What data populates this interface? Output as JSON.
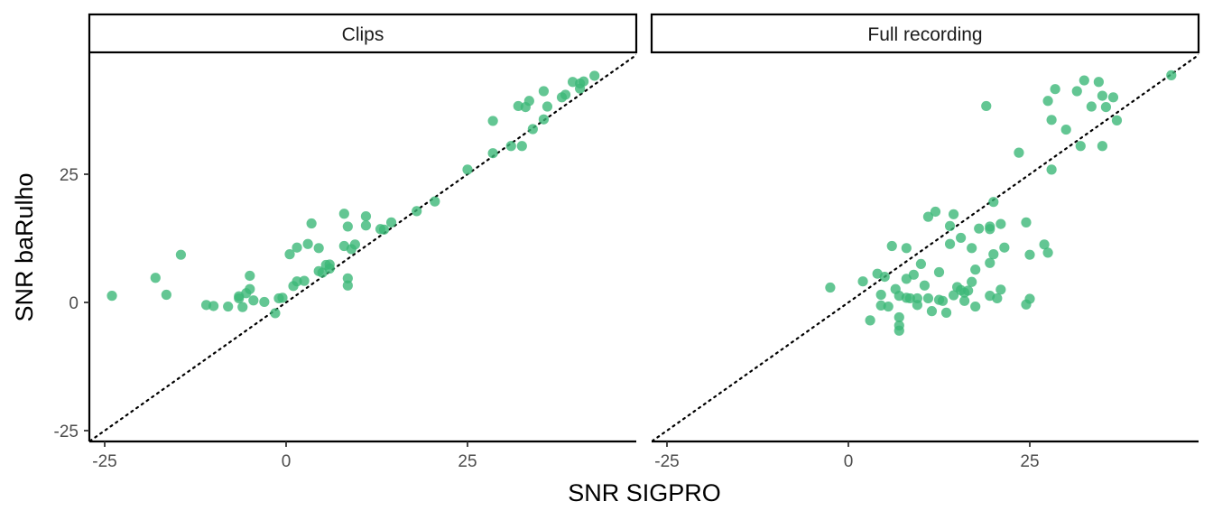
{
  "chart_data": {
    "type": "scatter",
    "xlabel": "SNR SIGPRO",
    "ylabel": "SNR baRulho",
    "xlim": [
      -27,
      46
    ],
    "ylim": [
      -27,
      46
    ],
    "x_ticks": [
      -25,
      0,
      25
    ],
    "y_ticks": [
      -25,
      0,
      25
    ],
    "reference_line": "y = x (dotted)",
    "grid": false,
    "point_color": "#3CB878",
    "panels": [
      {
        "strip_label": "Clips",
        "points": [
          [
            -24,
            1.3
          ],
          [
            -18,
            4.8
          ],
          [
            -16.5,
            1.5
          ],
          [
            -14.5,
            9.3
          ],
          [
            -11,
            -0.5
          ],
          [
            -10,
            -0.7
          ],
          [
            -8,
            -0.8
          ],
          [
            -6.5,
            1.2
          ],
          [
            -6.5,
            0.8
          ],
          [
            -6,
            -0.9
          ],
          [
            -5.5,
            1.8
          ],
          [
            -5,
            2.6
          ],
          [
            -5,
            5.2
          ],
          [
            -4.5,
            0.4
          ],
          [
            -3,
            0.1
          ],
          [
            -1.5,
            -2.1
          ],
          [
            -1,
            0.8
          ],
          [
            -0.5,
            0.9
          ],
          [
            0.5,
            9.4
          ],
          [
            1,
            3.2
          ],
          [
            1.5,
            10.7
          ],
          [
            1.5,
            4.1
          ],
          [
            2.5,
            4.2
          ],
          [
            3,
            11.4
          ],
          [
            3.5,
            15.4
          ],
          [
            4.5,
            10.6
          ],
          [
            4.5,
            6.1
          ],
          [
            5,
            5.8
          ],
          [
            5.5,
            7.3
          ],
          [
            6,
            7.4
          ],
          [
            6,
            6.6
          ],
          [
            8,
            11
          ],
          [
            8,
            17.3
          ],
          [
            8.5,
            14.8
          ],
          [
            8.5,
            3.3
          ],
          [
            8.5,
            4.7
          ],
          [
            9,
            10.4
          ],
          [
            9.5,
            11.3
          ],
          [
            11,
            15
          ],
          [
            11,
            16.8
          ],
          [
            13,
            14.3
          ],
          [
            13.5,
            14.2
          ],
          [
            14.5,
            15.6
          ],
          [
            18,
            17.8
          ],
          [
            20.5,
            19.7
          ],
          [
            25,
            25.9
          ],
          [
            28.5,
            35.4
          ],
          [
            28.5,
            29.1
          ],
          [
            31,
            30.5
          ],
          [
            32,
            38.3
          ],
          [
            32.5,
            30.5
          ],
          [
            33,
            38.1
          ],
          [
            33.5,
            39.3
          ],
          [
            34,
            33.8
          ],
          [
            35.5,
            41.2
          ],
          [
            35.5,
            35.7
          ],
          [
            36,
            38.2
          ],
          [
            38,
            40
          ],
          [
            38.5,
            40.5
          ],
          [
            39.5,
            43
          ],
          [
            40.5,
            41.7
          ],
          [
            40.5,
            42.7
          ],
          [
            41,
            43.1
          ],
          [
            42.5,
            44.2
          ]
        ]
      },
      {
        "strip_label": "Full recording",
        "points": [
          [
            -2.5,
            2.9
          ],
          [
            2,
            4.1
          ],
          [
            3,
            -3.5
          ],
          [
            4,
            5.6
          ],
          [
            4.5,
            1.5
          ],
          [
            4.5,
            -0.6
          ],
          [
            5,
            5
          ],
          [
            5.5,
            -0.8
          ],
          [
            6,
            11
          ],
          [
            6.5,
            2.6
          ],
          [
            7,
            -2.9
          ],
          [
            7,
            -4.5
          ],
          [
            7,
            -5.5
          ],
          [
            7,
            1.3
          ],
          [
            8,
            4.6
          ],
          [
            8,
            0.9
          ],
          [
            8,
            10.6
          ],
          [
            8.5,
            0.8
          ],
          [
            9,
            5.4
          ],
          [
            9.5,
            -0.5
          ],
          [
            9.5,
            0.8
          ],
          [
            10,
            7.5
          ],
          [
            10.5,
            3.3
          ],
          [
            11,
            0.8
          ],
          [
            11,
            16.7
          ],
          [
            11.5,
            -1.7
          ],
          [
            12,
            17.7
          ],
          [
            12.5,
            0.5
          ],
          [
            12.5,
            5.9
          ],
          [
            13,
            0.3
          ],
          [
            13.5,
            -2
          ],
          [
            14,
            11.4
          ],
          [
            14,
            14.9
          ],
          [
            14.5,
            1.4
          ],
          [
            14.5,
            17.2
          ],
          [
            15,
            3
          ],
          [
            15.5,
            2.4
          ],
          [
            15.5,
            12.6
          ],
          [
            16,
            0.3
          ],
          [
            16,
            1.9
          ],
          [
            16.5,
            2.3
          ],
          [
            17,
            4
          ],
          [
            17,
            10.6
          ],
          [
            17.5,
            -0.8
          ],
          [
            17.5,
            6.4
          ],
          [
            18,
            14.4
          ],
          [
            19,
            38.3
          ],
          [
            19.5,
            1.3
          ],
          [
            19.5,
            7.7
          ],
          [
            19.5,
            14.3
          ],
          [
            19.5,
            14.8
          ],
          [
            20,
            9.4
          ],
          [
            20,
            19.6
          ],
          [
            20.5,
            0.8
          ],
          [
            21,
            2.5
          ],
          [
            21,
            15.3
          ],
          [
            21.5,
            10.7
          ],
          [
            23.5,
            29.2
          ],
          [
            24.5,
            -0.4
          ],
          [
            24.5,
            15.6
          ],
          [
            25,
            0.7
          ],
          [
            25,
            9.3
          ],
          [
            27,
            11.3
          ],
          [
            27.5,
            9.7
          ],
          [
            27.5,
            39.3
          ],
          [
            28,
            25.9
          ],
          [
            28,
            35.6
          ],
          [
            28.5,
            41.6
          ],
          [
            30,
            33.7
          ],
          [
            31.5,
            41.2
          ],
          [
            32,
            30.5
          ],
          [
            32.5,
            43.3
          ],
          [
            33.5,
            38.2
          ],
          [
            34.5,
            43
          ],
          [
            35,
            40.3
          ],
          [
            35,
            30.5
          ],
          [
            35.5,
            38.1
          ],
          [
            36.5,
            40
          ],
          [
            37,
            35.5
          ],
          [
            44.5,
            44.3
          ]
        ]
      }
    ]
  }
}
